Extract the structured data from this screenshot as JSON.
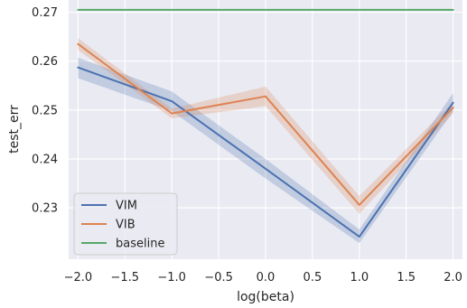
{
  "chart_data": {
    "type": "line",
    "xlabel": "log(beta)",
    "ylabel": "test_err",
    "xlim": [
      -2.1,
      2.1
    ],
    "ylim": [
      0.2195,
      0.2725
    ],
    "x_ticks": [
      -2.0,
      -1.5,
      -1.0,
      -0.5,
      0.0,
      0.5,
      1.0,
      1.5,
      2.0
    ],
    "x_tick_labels": [
      "−2.0",
      "−1.5",
      "−1.0",
      "−0.5",
      "0.0",
      "0.5",
      "1.0",
      "1.5",
      "2.0"
    ],
    "y_ticks": [
      0.23,
      0.24,
      0.25,
      0.26,
      0.27
    ],
    "y_tick_labels": [
      "0.23",
      "0.24",
      "0.25",
      "0.26",
      "0.27"
    ],
    "grid": true,
    "legend_position": "lower-left",
    "x": [
      -2.0,
      -1.0,
      0.0,
      1.0,
      2.0
    ],
    "series": [
      {
        "name": "VIM",
        "color": "#4c72b0",
        "values": [
          0.2587,
          0.2518,
          0.238,
          0.2241,
          0.2515
        ],
        "lower": [
          0.2565,
          0.2498,
          0.236,
          0.2228,
          0.2497
        ],
        "upper": [
          0.2607,
          0.2538,
          0.24,
          0.2256,
          0.2535
        ]
      },
      {
        "name": "VIB",
        "color": "#dd8452",
        "values": [
          0.2635,
          0.2493,
          0.2528,
          0.2306,
          0.2505
        ],
        "lower": [
          0.2623,
          0.2483,
          0.2508,
          0.2288,
          0.2493
        ],
        "upper": [
          0.2647,
          0.2503,
          0.2548,
          0.2324,
          0.2517
        ]
      },
      {
        "name": "baseline",
        "color": "#55a868",
        "values": [
          0.2705,
          0.2705,
          0.2705,
          0.2705,
          0.2705
        ]
      }
    ]
  }
}
